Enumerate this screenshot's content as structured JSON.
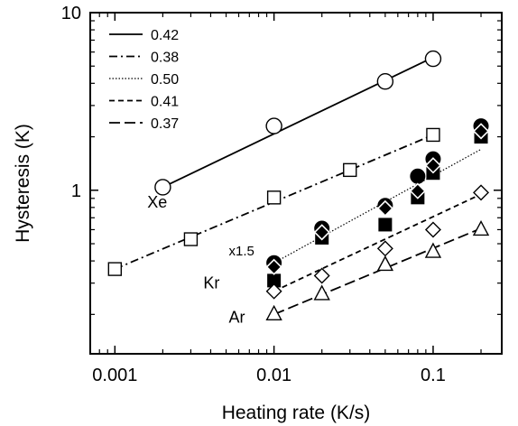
{
  "chart_data": {
    "type": "scatter",
    "xscale": "log",
    "yscale": "log",
    "xlim": [
      0.0007,
      0.27
    ],
    "ylim": [
      0.12,
      10
    ],
    "xlabel": "Heating rate (K/s)",
    "ylabel": "Hysteresis (K)",
    "xticks": [
      {
        "value": 0.001,
        "label": "0.001"
      },
      {
        "value": 0.01,
        "label": "0.01"
      },
      {
        "value": 0.1,
        "label": "0.1"
      }
    ],
    "yticks": [
      {
        "value": 1,
        "label": "1"
      },
      {
        "value": 10,
        "label": "10"
      }
    ],
    "grid": false,
    "legend_position": "top-left",
    "legend": [
      {
        "label": "0.42",
        "dash": "solid"
      },
      {
        "label": "0.38",
        "dash": "dash-dot"
      },
      {
        "label": "0.50",
        "dash": "dotted"
      },
      {
        "label": "0.41",
        "dash": "short-dash"
      },
      {
        "label": "0.37",
        "dash": "long-dash"
      }
    ],
    "series": [
      {
        "marker": "open-circle",
        "x": [
          0.002,
          0.01,
          0.05,
          0.1
        ],
        "y": [
          1.04,
          2.3,
          4.1,
          5.5
        ]
      },
      {
        "marker": "open-square",
        "x": [
          0.001,
          0.003,
          0.01,
          0.03,
          0.1
        ],
        "y": [
          0.36,
          0.53,
          0.91,
          1.3,
          2.05
        ]
      },
      {
        "marker": "filled-circle",
        "x": [
          0.01,
          0.02,
          0.05,
          0.08,
          0.1,
          0.2
        ],
        "y": [
          0.39,
          0.61,
          0.82,
          1.2,
          1.5,
          2.3
        ]
      },
      {
        "marker": "filled-square",
        "x": [
          0.01,
          0.02,
          0.05,
          0.08,
          0.1,
          0.2
        ],
        "y": [
          0.31,
          0.54,
          0.64,
          0.91,
          1.25,
          2.0
        ]
      },
      {
        "marker": "filled-diamond",
        "x": [
          0.01,
          0.02,
          0.05,
          0.08,
          0.1,
          0.2
        ],
        "y": [
          0.37,
          0.58,
          0.79,
          0.99,
          1.38,
          2.15
        ]
      },
      {
        "marker": "open-diamond",
        "x": [
          0.01,
          0.02,
          0.05,
          0.1,
          0.2
        ],
        "y": [
          0.27,
          0.33,
          0.47,
          0.6,
          0.97
        ]
      },
      {
        "marker": "open-triangle",
        "x": [
          0.01,
          0.02,
          0.05,
          0.1,
          0.2
        ],
        "y": [
          0.2,
          0.26,
          0.38,
          0.45,
          0.6
        ]
      }
    ],
    "fit_lines": [
      {
        "dash": "solid",
        "x": [
          0.002,
          0.1
        ],
        "y": [
          1.04,
          5.6
        ]
      },
      {
        "dash": "dash-dot",
        "x": [
          0.001,
          0.1
        ],
        "y": [
          0.36,
          2.05
        ]
      },
      {
        "dash": "dotted",
        "x": [
          0.01,
          0.2
        ],
        "y": [
          0.39,
          1.7
        ]
      },
      {
        "dash": "short-dash",
        "x": [
          0.01,
          0.2
        ],
        "y": [
          0.27,
          0.95
        ]
      },
      {
        "dash": "long-dash",
        "x": [
          0.01,
          0.2
        ],
        "y": [
          0.2,
          0.61
        ]
      }
    ],
    "annotations": [
      {
        "text": "Xe",
        "x": 0.0016,
        "y": 0.8,
        "size": "large"
      },
      {
        "text": "x1.5",
        "x": 0.0052,
        "y": 0.43,
        "size": "small"
      },
      {
        "text": "Kr",
        "x": 0.0036,
        "y": 0.28,
        "size": "large"
      },
      {
        "text": "Ar",
        "x": 0.0052,
        "y": 0.18,
        "size": "large"
      }
    ]
  }
}
